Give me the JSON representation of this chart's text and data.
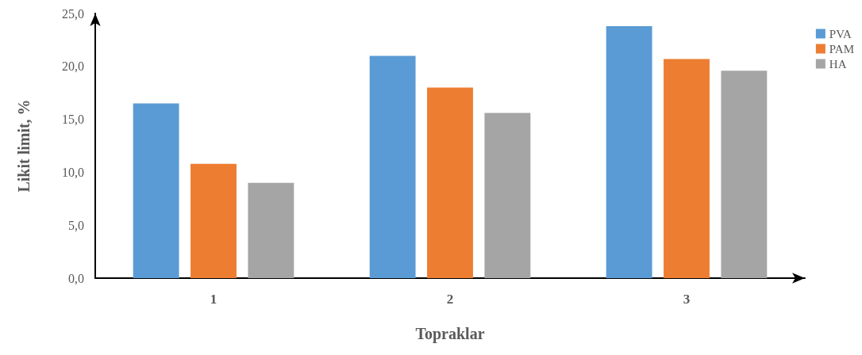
{
  "chart_data": {
    "type": "bar",
    "xlabel": "Topraklar",
    "ylabel": "Likit limit, %",
    "categories": [
      "1",
      "2",
      "3"
    ],
    "series": [
      {
        "name": "PVA",
        "color": "#5b9bd5",
        "values": [
          16.5,
          21.0,
          23.8
        ]
      },
      {
        "name": "PAM",
        "color": "#ed7d31",
        "values": [
          10.8,
          18.0,
          20.7
        ]
      },
      {
        "name": "HA",
        "color": "#a5a5a5",
        "values": [
          9.0,
          15.6,
          19.6
        ]
      }
    ],
    "ylim": [
      0,
      25
    ],
    "yticks": [
      {
        "value": 0,
        "label": "0,0"
      },
      {
        "value": 5,
        "label": "5,0"
      },
      {
        "value": 10,
        "label": "10,0"
      },
      {
        "value": 15,
        "label": "15,0"
      },
      {
        "value": 20,
        "label": "20,0"
      },
      {
        "value": 25,
        "label": "25,0"
      }
    ],
    "grid": false,
    "legend": "top right"
  }
}
